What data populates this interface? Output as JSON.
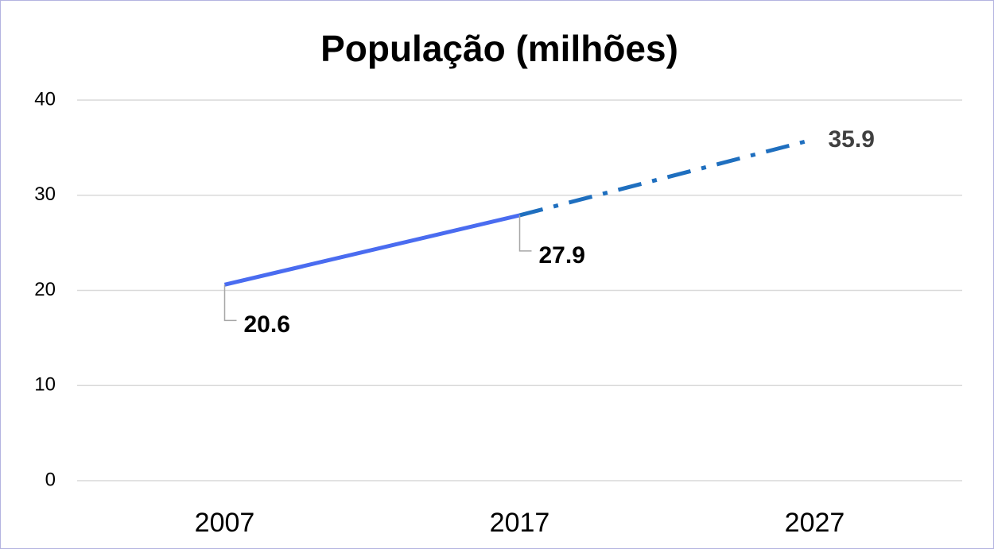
{
  "chart_data": {
    "type": "line",
    "title": "População (milhões)",
    "categories": [
      "2007",
      "2017",
      "2027"
    ],
    "series": [
      {
        "values": [
          20.6,
          27.9,
          35.9
        ],
        "segment_colors": [
          "#4a6cf0",
          "#1f6fbf"
        ],
        "segment_styles": [
          "solid",
          "dashdot"
        ],
        "value_label_colors": [
          "#000000",
          "#000000",
          "#404040"
        ]
      }
    ],
    "ylim": [
      0,
      40
    ],
    "yticks": [
      0,
      10,
      20,
      30,
      40
    ],
    "grid": true
  }
}
